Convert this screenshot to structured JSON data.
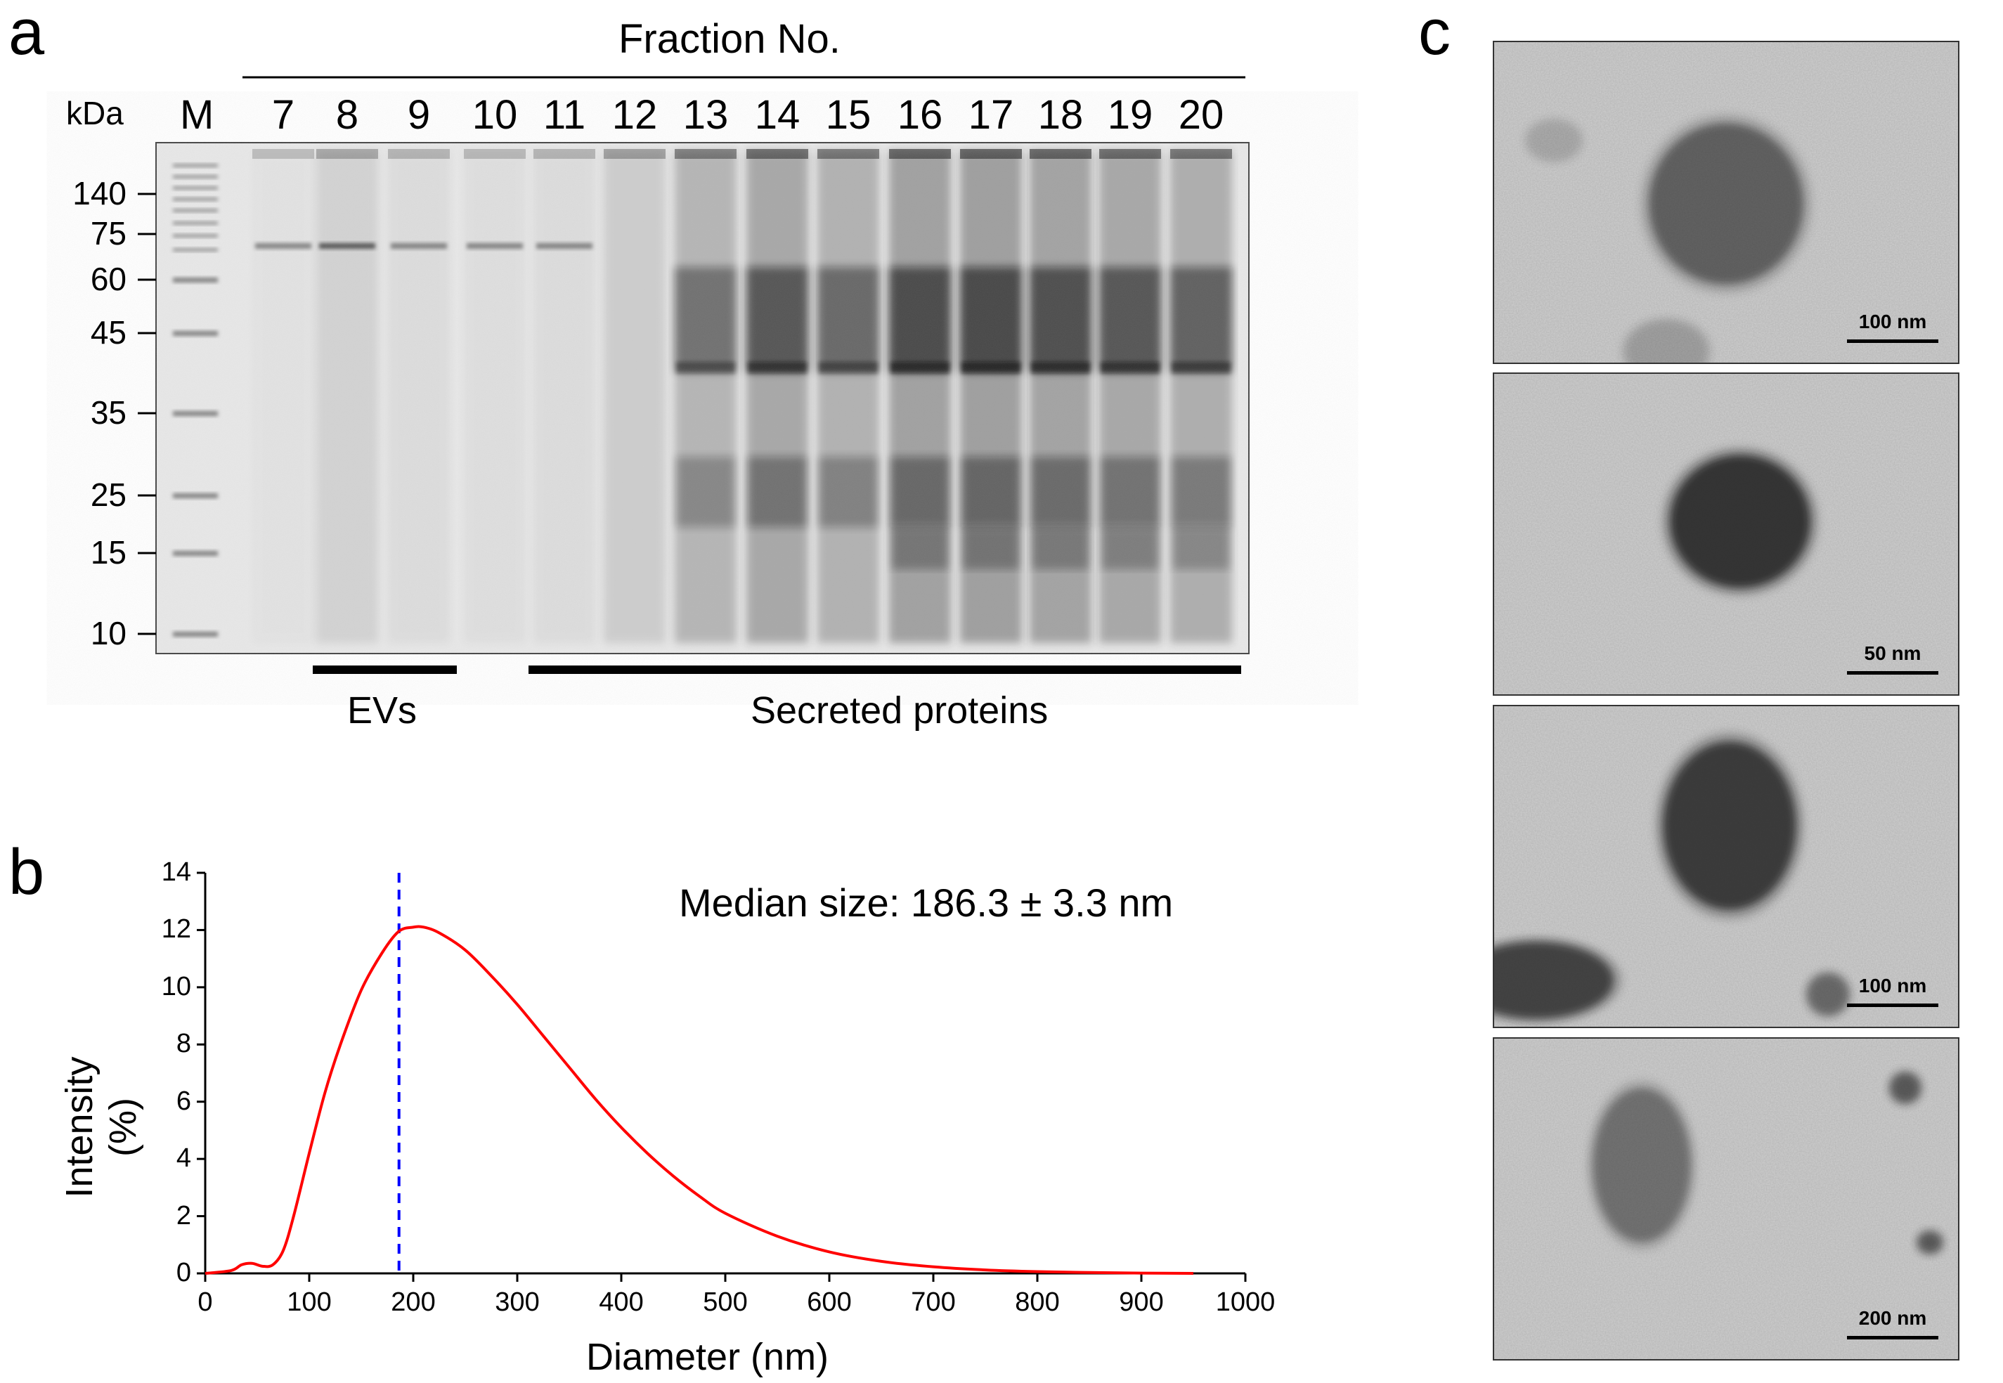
{
  "panels": {
    "a": {
      "letter": "a",
      "header": "Fraction No.",
      "unit_label": "kDa",
      "marker_label": "M",
      "lanes": [
        "7",
        "8",
        "9",
        "10",
        "11",
        "12",
        "13",
        "14",
        "15",
        "16",
        "17",
        "18",
        "19",
        "20"
      ],
      "mw_labels": [
        "140",
        "75",
        "60",
        "45",
        "35",
        "25",
        "15",
        "10"
      ],
      "groups": [
        {
          "label": "EVs"
        },
        {
          "label": "Secreted proteins"
        }
      ]
    },
    "b": {
      "letter": "b",
      "annotation": "Median size: 186.3 ± 3.3 nm"
    },
    "c": {
      "letter": "c",
      "images": [
        {
          "scale_label": "100 nm"
        },
        {
          "scale_label": "50 nm"
        },
        {
          "scale_label": "100 nm"
        },
        {
          "scale_label": "200 nm"
        }
      ]
    }
  },
  "chart_data": {
    "type": "line",
    "xlabel": "Diameter (nm)",
    "ylabel": "Intensity (%)",
    "xlim": [
      0,
      1000
    ],
    "ylim": [
      0,
      14
    ],
    "xticks": [
      0,
      100,
      200,
      300,
      400,
      500,
      600,
      700,
      800,
      900,
      1000
    ],
    "yticks": [
      0,
      2,
      4,
      6,
      8,
      10,
      12,
      14
    ],
    "median_line_x": 186.3,
    "series": [
      {
        "color": "#ff0000",
        "x": [
          0,
          25,
          35,
          45,
          55,
          65,
          75,
          85,
          100,
          115,
          130,
          150,
          170,
          186,
          200,
          210,
          225,
          250,
          275,
          300,
          325,
          350,
          375,
          400,
          425,
          450,
          475,
          500,
          550,
          600,
          650,
          700,
          750,
          800,
          850,
          900,
          950
        ],
        "y": [
          0,
          0.1,
          0.3,
          0.35,
          0.25,
          0.3,
          0.8,
          2.0,
          4.2,
          6.3,
          8.0,
          9.9,
          11.2,
          11.95,
          12.1,
          12.1,
          11.9,
          11.3,
          10.4,
          9.4,
          8.3,
          7.2,
          6.1,
          5.1,
          4.2,
          3.4,
          2.7,
          2.1,
          1.3,
          0.75,
          0.42,
          0.23,
          0.12,
          0.06,
          0.03,
          0.01,
          0
        ]
      }
    ],
    "median_line_color": "#0000ff"
  }
}
